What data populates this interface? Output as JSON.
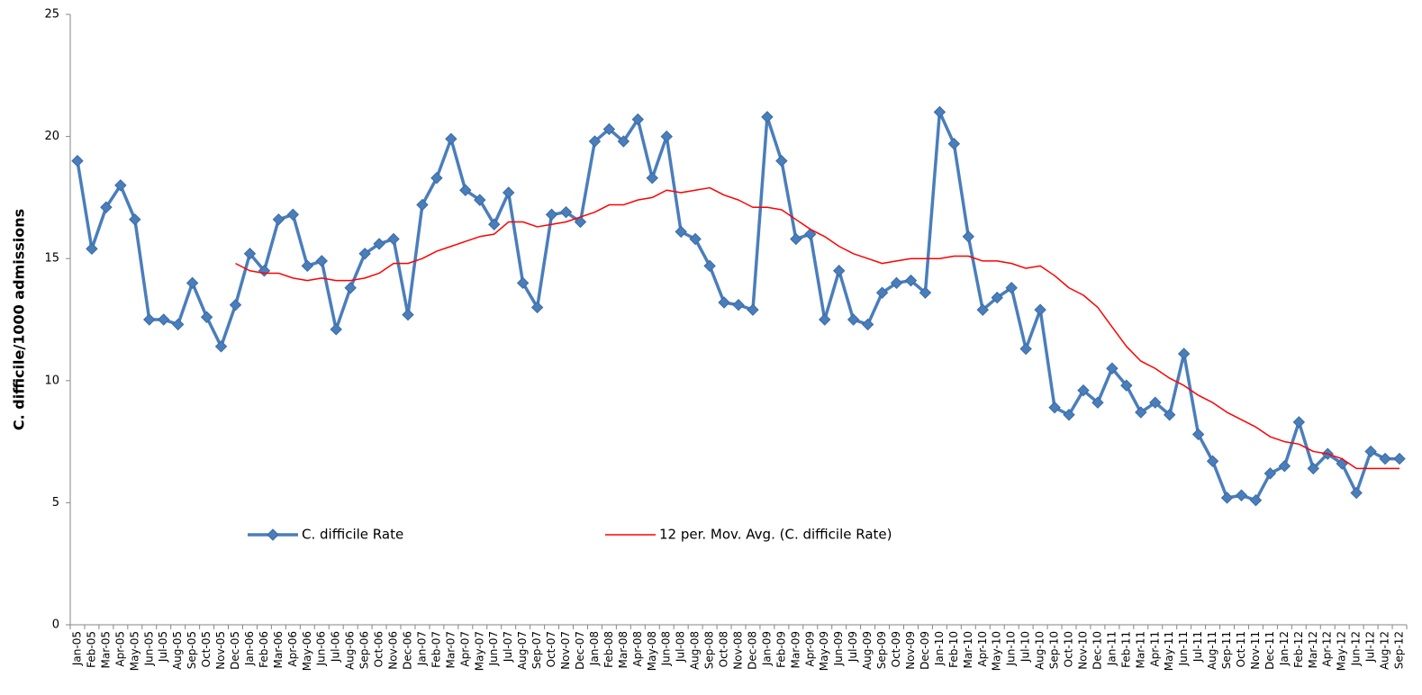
{
  "chart_data": {
    "type": "line",
    "y_label": "C. difficile/1000 admissions",
    "categories": [
      "Jan-05",
      "Feb-05",
      "Mar-05",
      "Apr-05",
      "May-05",
      "Jun-05",
      "Jul-05",
      "Aug-05",
      "Sep-05",
      "Oct-05",
      "Nov-05",
      "Dec-05",
      "Jan-06",
      "Feb-06",
      "Mar-06",
      "Apr-06",
      "May-06",
      "Jun-06",
      "Jul-06",
      "Aug-06",
      "Sep-06",
      "Oct-06",
      "Nov-06",
      "Dec-06",
      "Jan-07",
      "Feb-07",
      "Mar-07",
      "Apr-07",
      "May-07",
      "Jun-07",
      "Jul-07",
      "Aug-07",
      "Sep-07",
      "Oct-07",
      "Nov-07",
      "Dec-07",
      "Jan-08",
      "Feb-08",
      "Mar-08",
      "Apr-08",
      "May-08",
      "Jun-08",
      "Jul-08",
      "Aug-08",
      "Sep-08",
      "Oct-08",
      "Nov-08",
      "Dec-08",
      "Jan-09",
      "Feb-09",
      "Mar-09",
      "Apr-09",
      "May-09",
      "Jun-09",
      "Jul-09",
      "Aug-09",
      "Sep-09",
      "Oct-09",
      "Nov-09",
      "Dec-09",
      "Jan-10",
      "Feb-10",
      "Mar-10",
      "Apr-10",
      "May-10",
      "Jun-10",
      "Jul-10",
      "Aug-10",
      "Sep-10",
      "Oct-10",
      "Nov-10",
      "Dec-10",
      "Jan-11",
      "Feb-11",
      "Mar-11",
      "Apr-11",
      "May-11",
      "Jun-11",
      "Jul-11",
      "Aug-11",
      "Sep-11",
      "Oct-11",
      "Nov-11",
      "Dec-11",
      "Jan-12",
      "Feb-12",
      "Mar-12",
      "Apr-12",
      "May-12",
      "Jun-12",
      "Jul-12",
      "Aug-12",
      "Sep-12"
    ],
    "series": [
      {
        "name": "C. difficile Rate",
        "color": "#4a7ebb",
        "marker": "diamond",
        "values": [
          19.0,
          15.4,
          17.1,
          18.0,
          16.6,
          12.5,
          12.5,
          12.3,
          14.0,
          12.6,
          11.4,
          13.1,
          15.2,
          14.5,
          16.6,
          16.8,
          14.7,
          14.9,
          12.1,
          13.8,
          15.2,
          15.6,
          15.8,
          12.7,
          17.2,
          18.3,
          19.9,
          17.8,
          17.4,
          16.4,
          17.7,
          14.0,
          13.0,
          16.8,
          16.9,
          16.5,
          19.8,
          20.3,
          19.8,
          20.7,
          18.3,
          20.0,
          16.1,
          15.8,
          14.7,
          13.2,
          13.1,
          12.9,
          20.8,
          19.0,
          15.8,
          16.0,
          12.5,
          14.5,
          12.5,
          12.3,
          13.6,
          14.0,
          14.1,
          13.6,
          21.0,
          19.7,
          15.9,
          12.9,
          13.4,
          13.8,
          11.3,
          12.9,
          8.9,
          8.6,
          9.6,
          9.1,
          10.5,
          9.8,
          8.7,
          9.1,
          8.6,
          11.1,
          7.8,
          6.7,
          5.2,
          5.3,
          5.1,
          6.2,
          6.5,
          8.3,
          6.4,
          7.0,
          6.6,
          5.4,
          7.1,
          6.8,
          6.8
        ]
      },
      {
        "name": "12 per. Mov. Avg. (C. difficile Rate)",
        "color": "#ff0000",
        "marker": "none",
        "values": [
          null,
          null,
          null,
          null,
          null,
          null,
          null,
          null,
          null,
          null,
          null,
          14.8,
          14.5,
          14.4,
          14.4,
          14.2,
          14.1,
          14.2,
          14.1,
          14.1,
          14.2,
          14.4,
          14.8,
          14.8,
          15.0,
          15.3,
          15.5,
          15.7,
          15.9,
          16.0,
          16.5,
          16.5,
          16.3,
          16.4,
          16.5,
          16.7,
          16.9,
          17.2,
          17.2,
          17.4,
          17.5,
          17.8,
          17.7,
          17.8,
          17.9,
          17.6,
          17.4,
          17.1,
          17.1,
          17.0,
          16.6,
          16.2,
          15.9,
          15.5,
          15.2,
          15.0,
          14.8,
          14.9,
          15.0,
          15.0,
          15.0,
          15.1,
          15.1,
          14.9,
          14.9,
          14.8,
          14.6,
          14.7,
          14.3,
          13.8,
          13.5,
          13.0,
          12.2,
          11.4,
          10.8,
          10.5,
          10.1,
          9.8,
          9.4,
          9.1,
          8.7,
          8.4,
          8.1,
          7.7,
          7.5,
          7.4,
          7.1,
          7.0,
          6.8,
          6.4,
          6.4,
          6.4,
          6.4
        ]
      }
    ],
    "ylim": [
      0,
      25
    ],
    "yticks": [
      0,
      5,
      10,
      15,
      20,
      25
    ],
    "grid": false,
    "legend": "inside-bottom"
  }
}
